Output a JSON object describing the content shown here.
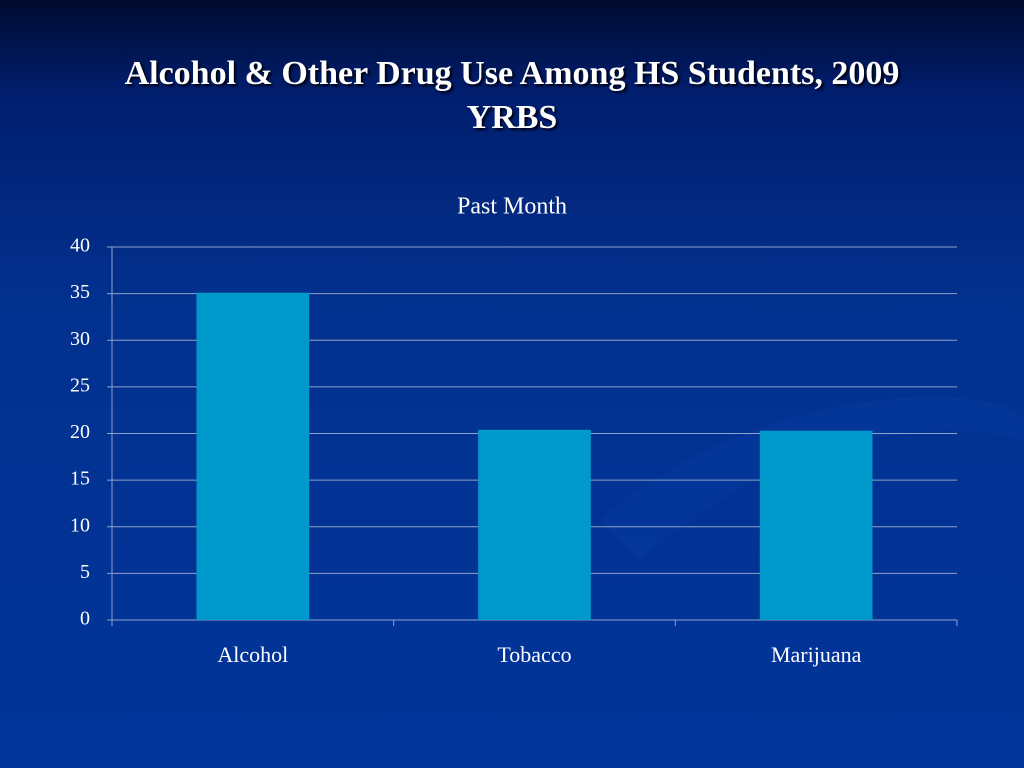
{
  "slide": {
    "title": "Alcohol & Other Drug Use Among HS Students, 2009 YRBS"
  },
  "chart_data": {
    "type": "bar",
    "title": "Past Month",
    "categories": [
      "Alcohol",
      "Tobacco",
      "Marijuana"
    ],
    "values": [
      35.1,
      20.4,
      20.3
    ],
    "color": "#0099cc",
    "ylim": [
      0,
      40
    ],
    "yticks": [
      0,
      5,
      10,
      15,
      20,
      25,
      30,
      35,
      40
    ],
    "grid": true
  }
}
